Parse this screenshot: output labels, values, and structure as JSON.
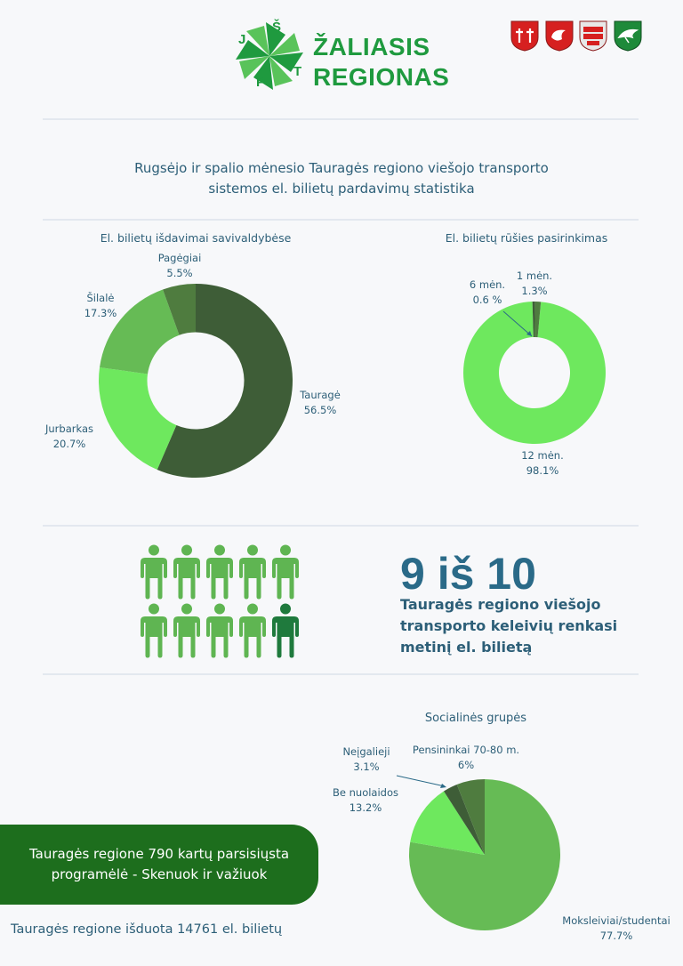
{
  "header": {
    "logo_letters": [
      "J",
      "Š",
      "P",
      "T"
    ],
    "logo_line1": "ŽALIASIS",
    "logo_line2": "REGIONAS",
    "coat_of_arms": [
      "taurage-coat-of-arms",
      "jurbarkas-coat-of-arms",
      "silale-coat-of-arms",
      "pagegiai-coat-of-arms"
    ]
  },
  "title": {
    "line1": "Rugsėjo ir spalio mėnesio Tauragės regiono viešojo transporto",
    "line2": "sistemos el. bilietų pardavimų statistika"
  },
  "colors": {
    "dark_green": "#3e5d37",
    "mid_green": "#4f7c3f",
    "green": "#66bb55",
    "light_green": "#6ee85e",
    "stat_blue": "#2a6a88",
    "pill_green": "#1d6e1d"
  },
  "chart_data": [
    {
      "type": "pie",
      "variant": "donut",
      "title": "El. bilietų išdavimai savivaldybėse",
      "categories": [
        "Tauragė",
        "Jurbarkas",
        "Šilalė",
        "Pagėgiai"
      ],
      "values": [
        56.5,
        20.7,
        17.3,
        5.5
      ],
      "value_labels": [
        "56.5%",
        "20.7%",
        "17.3%",
        "5.5%"
      ]
    },
    {
      "type": "pie",
      "variant": "donut",
      "title": "El. bilietų rūšies pasirinkimas",
      "categories": [
        "12 mėn.",
        "6 mėn.",
        "1 mėn."
      ],
      "values": [
        98.1,
        0.6,
        1.3
      ],
      "value_labels": [
        "98.1%",
        "0.6 %",
        "1.3%"
      ]
    },
    {
      "type": "pie",
      "title": "Socialinės grupės",
      "categories": [
        "Moksleiviai/studentai",
        "Be nuolaidos",
        "Neįgalieji",
        "Pensininkai 70-80 m."
      ],
      "values": [
        77.7,
        13.2,
        3.1,
        6
      ],
      "value_labels": [
        "77.7%",
        "13.2%",
        "3.1%",
        "6%"
      ]
    }
  ],
  "stat": {
    "headline": "9 iš 10",
    "line1": "Tauragės regiono viešojo",
    "line2": "transporto keleivių renkasi",
    "line3": "metinį el. bilietą",
    "people_total": 10,
    "people_highlighted": 9
  },
  "banner": {
    "line1": "Tauragės regione 790 kartų parsisiųsta",
    "line2": "programėlė - Skenuok ir važiuok"
  },
  "footer": {
    "note": "Tauragės regione išduota 14761 el. bilietų"
  }
}
